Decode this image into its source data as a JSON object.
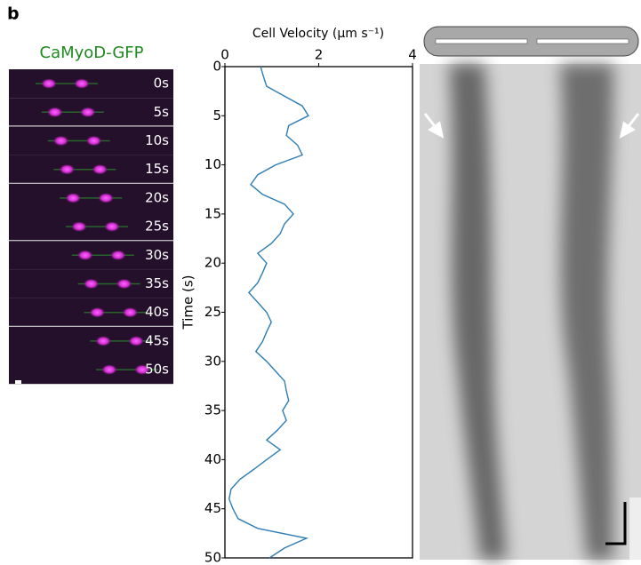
{
  "panel_label": "b",
  "frames": {
    "title": "CaMyoD-GFP",
    "labels": [
      "0s",
      "5s",
      "10s",
      "15s",
      "20s",
      "25s",
      "30s",
      "35s",
      "40s",
      "45s",
      "50s"
    ]
  },
  "chart_data": {
    "type": "line",
    "orientation": "time-down",
    "x_label": "Time (s)",
    "y_label": "Cell Velocity (μm s⁻¹)",
    "x": [
      0,
      1,
      2,
      3,
      4,
      5,
      6,
      7,
      8,
      9,
      10,
      11,
      12,
      13,
      14,
      15,
      16,
      17,
      18,
      19,
      20,
      21,
      22,
      23,
      24,
      25,
      26,
      27,
      28,
      29,
      30,
      31,
      32,
      33,
      34,
      35,
      36,
      37,
      38,
      39,
      40,
      41,
      42,
      43,
      44,
      45,
      46,
      47,
      48,
      49,
      50
    ],
    "values": [
      0.76,
      0.82,
      0.89,
      1.27,
      1.65,
      1.78,
      1.36,
      1.31,
      1.55,
      1.65,
      1.08,
      0.7,
      0.55,
      0.8,
      1.27,
      1.46,
      1.27,
      1.18,
      0.99,
      0.7,
      0.89,
      0.8,
      0.7,
      0.51,
      0.7,
      0.89,
      0.99,
      0.89,
      0.8,
      0.66,
      0.89,
      1.08,
      1.27,
      1.31,
      1.36,
      1.23,
      1.31,
      1.12,
      0.89,
      1.18,
      0.89,
      0.61,
      0.32,
      0.13,
      0.09,
      0.17,
      0.28,
      0.7,
      1.74,
      1.27,
      0.95
    ],
    "color": "#2e7db3",
    "xlim": [
      0,
      50
    ],
    "xticks": [
      0,
      5,
      10,
      15,
      20,
      25,
      30,
      35,
      40,
      45,
      50
    ],
    "ylim": [
      0,
      4
    ],
    "yticks": [
      0,
      2,
      4
    ]
  }
}
